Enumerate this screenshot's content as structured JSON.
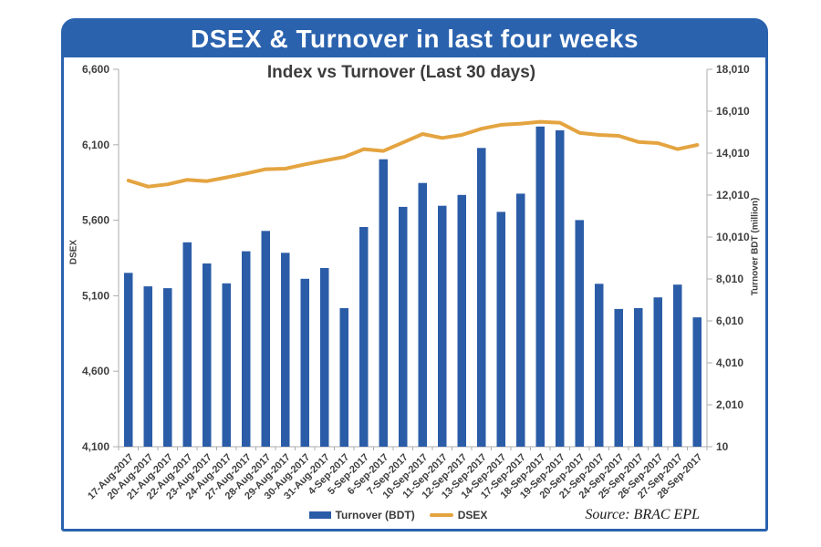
{
  "banner": {
    "title": "DSEX & Turnover in last four weeks"
  },
  "source": {
    "text": "Source: BRAC EPL"
  },
  "colors": {
    "frame_blue": "#2A62AE",
    "bar_blue": "#2B5CA7",
    "line_orange": "#E4A440",
    "label_text": "#3F3F3F",
    "axis_gray": "#ADADAD"
  },
  "chart_data": {
    "type": "combo-bar-line",
    "title": "Index vs Turnover (Last 30 days)",
    "grid": false,
    "legend_position": "bottom",
    "categories": [
      "17-Aug-2017",
      "20-Aug-2017",
      "21-Aug-2017",
      "22-Aug-2017",
      "23-Aug-2017",
      "24-Aug-2017",
      "27-Aug-2017",
      "28-Aug-2017",
      "29-Aug-2017",
      "30-Aug-2017",
      "31-Aug-2017",
      "4-Sep-2017",
      "5-Sep-2017",
      "6-Sep-2017",
      "7-Sep-2017",
      "10-Sep-2017",
      "11-Sep-2017",
      "12-Sep-2017",
      "13-Sep-2017",
      "14-Sep-2017",
      "17-Sep-2017",
      "18-Sep-2017",
      "19-Sep-2017",
      "20-Sep-2017",
      "21-Sep-2017",
      "24-Sep-2017",
      "25-Sep-2017",
      "26-Sep-2017",
      "27-Sep-2017",
      "28-Sep-2017"
    ],
    "series": [
      {
        "name": "Turnover (BDT)",
        "type": "bar",
        "axis": "right",
        "color": "#2B5CA7",
        "values": [
          8300,
          7660,
          7570,
          9760,
          8750,
          7800,
          9330,
          10300,
          9260,
          8020,
          8530,
          6620,
          10490,
          13720,
          11450,
          12590,
          11500,
          12020,
          14260,
          11210,
          12080,
          15280,
          15100,
          10820,
          7780,
          6580,
          6620,
          7130,
          7740,
          6180
        ]
      },
      {
        "name": "DSEX",
        "type": "line",
        "axis": "left",
        "color": "#E4A440",
        "values": [
          5863,
          5823,
          5838,
          5868,
          5859,
          5884,
          5910,
          5938,
          5942,
          5970,
          5995,
          6019,
          6071,
          6059,
          6115,
          6171,
          6145,
          6165,
          6206,
          6232,
          6240,
          6252,
          6246,
          6179,
          6165,
          6159,
          6119,
          6111,
          6071,
          6099
        ]
      }
    ],
    "left_axis": {
      "label": "DSEX",
      "min": 4100,
      "max": 6600,
      "ticks": [
        "6,600",
        "6,100",
        "5,600",
        "5,100",
        "4,600",
        "4,100"
      ]
    },
    "right_axis": {
      "label": "Turnover BDT (million)",
      "min": 10,
      "max": 18010,
      "ticks": [
        "18,010",
        "16,010",
        "14,010",
        "12,010",
        "10,010",
        "8,010",
        "6,010",
        "4,010",
        "2,010",
        "10"
      ]
    }
  }
}
